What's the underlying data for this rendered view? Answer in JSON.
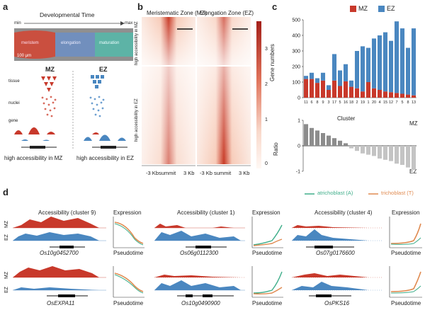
{
  "panel_a": {
    "letter": "a",
    "dev_title": "Developmental Time",
    "min_label": "min",
    "max_label": "max",
    "zones": [
      "meristem",
      "elongation",
      "maturation"
    ],
    "scale": "100 μm",
    "mz_label": "MZ",
    "ez_label": "EZ",
    "row_labels": [
      "tissue",
      "nuclei",
      "gene"
    ],
    "caption_mz": "high accessibility in MZ",
    "caption_ez": "high accessibility in EZ",
    "colors": {
      "mz": "#c8392b",
      "ez": "#4a87c0"
    }
  },
  "panel_b": {
    "letter": "b",
    "col_titles": [
      "Meristematic Zone (MZ)",
      "Elongation Zone (EZ)"
    ],
    "row_labels": [
      "high accessibility in MZ",
      "high accessibility in EZ"
    ],
    "x_ticks": [
      "-3 Kb",
      "summit",
      "3 Kb",
      "-3 Kb",
      "summit",
      "3 Kb"
    ],
    "colorbar_ticks": [
      "3",
      "2",
      "1",
      "0"
    ]
  },
  "panel_c": {
    "letter": "c",
    "legend": [
      {
        "name": "MZ",
        "color": "#c8392b"
      },
      {
        "name": "EZ",
        "color": "#4a87c0"
      }
    ],
    "ylabel_top": "Gene numbers",
    "xlabel_top": "Cluster",
    "ylabel_bottom": "Ratio",
    "mz_side": "MZ",
    "ez_side": "EZ"
  },
  "chart_data": [
    {
      "type": "bar",
      "title": "",
      "xlabel": "Cluster",
      "ylabel": "Gene numbers",
      "ylim": [
        0,
        500
      ],
      "yticks": [
        0,
        100,
        200,
        300,
        400,
        500
      ],
      "categories": [
        "11",
        "6",
        "8",
        "9",
        "3",
        "17",
        "5",
        "16",
        "18",
        "2",
        "19",
        "1",
        "20",
        "4",
        "15",
        "12",
        "7",
        "5",
        "8",
        "13"
      ],
      "stacked": true,
      "series": [
        {
          "name": "MZ",
          "values": [
            120,
            120,
            95,
            110,
            50,
            110,
            75,
            105,
            70,
            60,
            40,
            100,
            60,
            50,
            40,
            35,
            30,
            25,
            20,
            15
          ]
        },
        {
          "name": "EZ",
          "values": [
            20,
            40,
            30,
            50,
            30,
            170,
            100,
            110,
            40,
            240,
            290,
            220,
            320,
            350,
            380,
            330,
            460,
            420,
            300,
            430
          ]
        }
      ]
    },
    {
      "type": "bar",
      "title": "",
      "xlabel": "",
      "ylabel": "Ratio",
      "ylim": [
        -1,
        1
      ],
      "yticks": [
        -1,
        0,
        1
      ],
      "categories": [
        "11",
        "6",
        "8",
        "9",
        "3",
        "17",
        "5",
        "16",
        "18",
        "2",
        "19",
        "1",
        "20",
        "4",
        "15",
        "12",
        "7",
        "5",
        "8",
        "13"
      ],
      "values": [
        0.85,
        0.7,
        0.6,
        0.5,
        0.4,
        0.3,
        0.2,
        0.1,
        -0.1,
        -0.2,
        -0.3,
        -0.35,
        -0.4,
        -0.5,
        -0.55,
        -0.6,
        -0.7,
        -0.75,
        -0.85,
        -0.95
      ]
    }
  ],
  "panel_d": {
    "letter": "d",
    "legend": [
      {
        "name": "atrichoblast (A)",
        "color": "#3fae8a"
      },
      {
        "name": "trichoblast (T)",
        "color": "#e08a50"
      }
    ],
    "row_labels": [
      "MZ",
      "EZ"
    ],
    "blocks": [
      {
        "title": "Accessibility (cluster 9)",
        "expr": "Expression",
        "gene": "Os10g0452700",
        "pseudo": "Pseudotime"
      },
      {
        "title": "Accessibility (cluster 1)",
        "expr": "Expression",
        "gene": "Os06g0112300",
        "pseudo": "Pseudotime"
      },
      {
        "title": "Accessibility (cluster 4)",
        "expr": "Expression",
        "gene": "Os07g0176600",
        "pseudo": "Pseudotime"
      },
      {
        "title": "",
        "expr": "",
        "gene": "OsEXPA11",
        "pseudo": "Pseudotime"
      },
      {
        "title": "",
        "expr": "",
        "gene": "Os10g0490900",
        "pseudo": "Pseudotime"
      },
      {
        "title": "",
        "expr": "",
        "gene": "OsPKS16",
        "pseudo": "Pseudotime"
      }
    ]
  }
}
